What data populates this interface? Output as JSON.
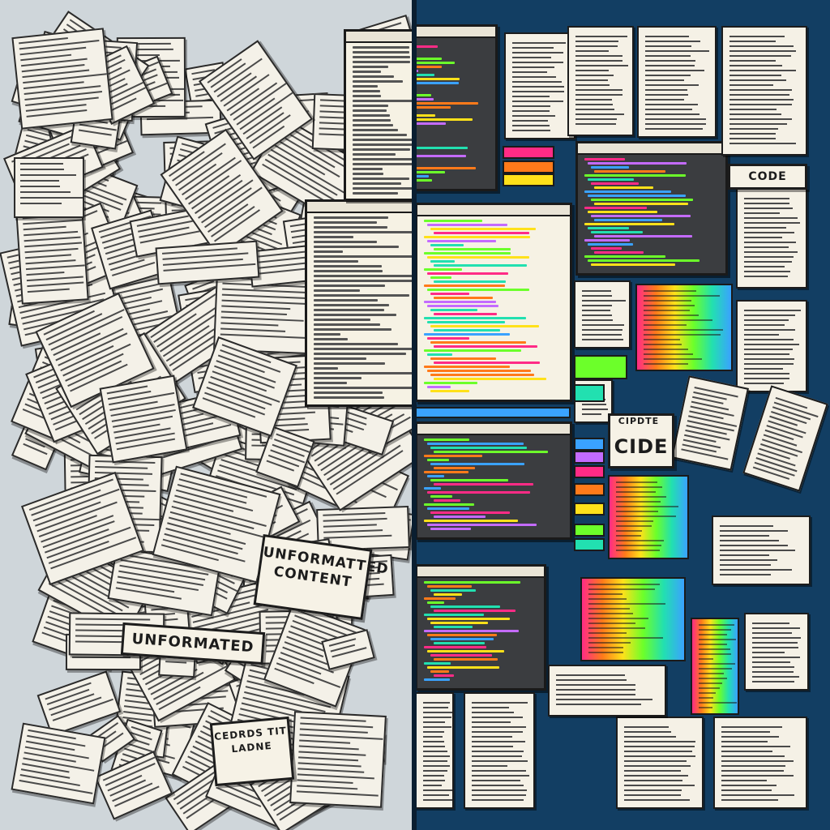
{
  "left_panel": {
    "labels": {
      "unformatted_content": "UNFORMATTED CONTENT",
      "unformated": "UNFORMATED",
      "bottom_book": "CEDRDS TIT LADNE"
    }
  },
  "right_panel": {
    "labels": {
      "code_top": "CODE",
      "cide": "CIDE",
      "cide_small": "CIPDTE"
    }
  },
  "colors": {
    "left_bg": "#cfd6da",
    "right_bg": "#123e63",
    "paper": "#f4f1e8",
    "code_window": "#3b3d40",
    "accent_pink": "#ff2b86",
    "accent_green": "#6cff2a",
    "accent_blue": "#3aa2ff"
  }
}
